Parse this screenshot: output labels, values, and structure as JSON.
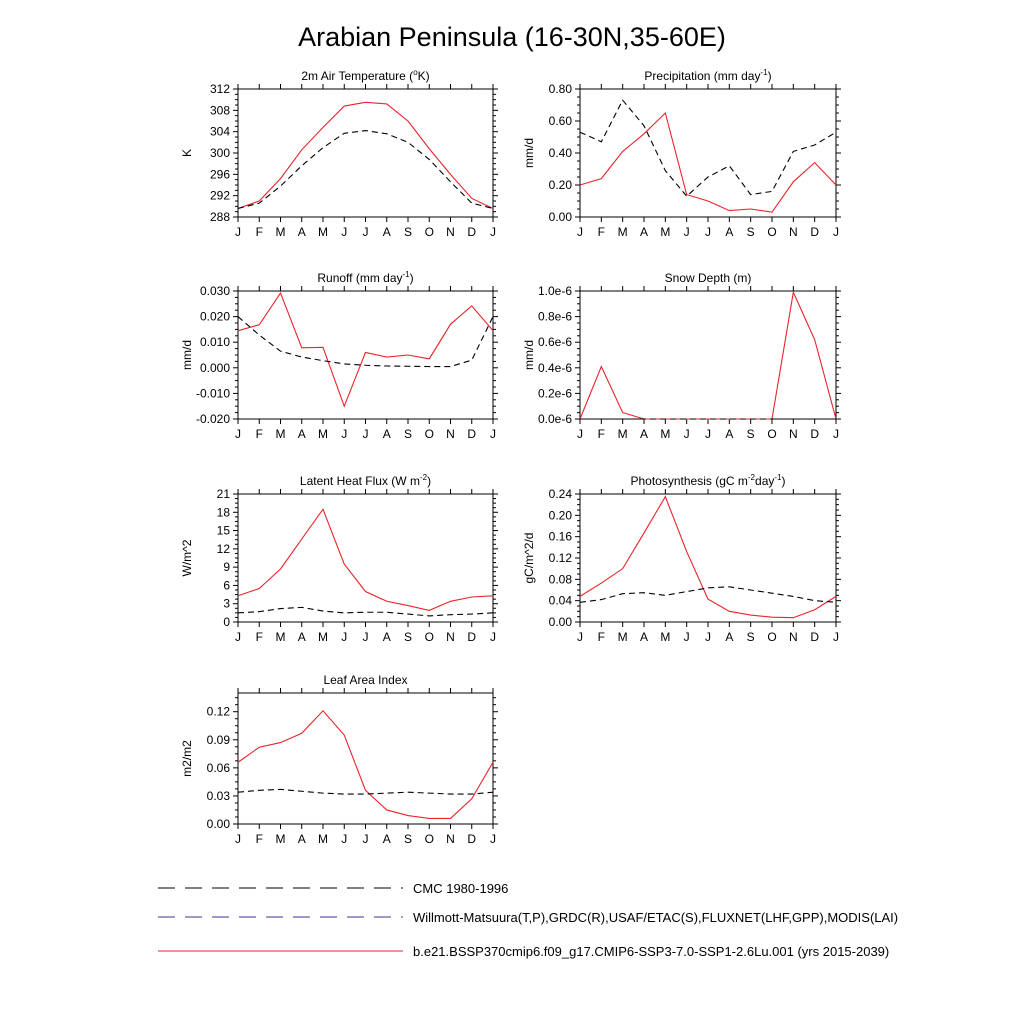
{
  "title": "Arabian Peninsula (16-30N,35-60E)",
  "months": [
    "J",
    "F",
    "M",
    "A",
    "M",
    "J",
    "J",
    "A",
    "S",
    "O",
    "N",
    "D",
    "J"
  ],
  "colors": {
    "model": "#e8242a",
    "obs": "#000000",
    "obs_alt": "#3a3a8c"
  },
  "legend": [
    {
      "label": "CMC 1980-1996",
      "style": "dash",
      "color": "#000000"
    },
    {
      "label": "Willmott-Matsuura(T,P),GRDC(R),USAF/ETAC(S),FLUXNET(LHF,GPP),MODIS(LAI)",
      "style": "dash",
      "color": "#3a3a8c"
    },
    {
      "label": "b.e21.BSSP370cmip6.f09_g17.CMIP6-SSP3-7.0-SSP1-2.6Lu.001 (yrs 2015-2039)",
      "style": "solid",
      "color": "#e8242a"
    }
  ],
  "chart_data": [
    {
      "type": "line",
      "title": "2m Air Temperature (°K)",
      "title_parts": [
        [
          "2m Air Temperature (",
          false
        ],
        [
          "o",
          true
        ],
        [
          "K)",
          false
        ]
      ],
      "ylabel": "K",
      "ylim": [
        288,
        312
      ],
      "yticks": [
        288,
        292,
        296,
        300,
        304,
        308,
        312
      ],
      "ytick_labels": [
        "288",
        "292",
        "296",
        "300",
        "304",
        "308",
        "312"
      ],
      "series": [
        {
          "style": "solid",
          "values": [
            289.6,
            291.0,
            295.2,
            300.6,
            304.8,
            308.8,
            309.5,
            309.2,
            306.0,
            300.8,
            296.0,
            291.5,
            289.6
          ]
        },
        {
          "style": "dash",
          "values": [
            289.6,
            290.6,
            293.8,
            297.6,
            301.0,
            303.7,
            304.2,
            303.6,
            302.0,
            298.8,
            294.6,
            290.6,
            289.6
          ]
        }
      ]
    },
    {
      "type": "line",
      "title": "Precipitation (mm day-1)",
      "title_parts": [
        [
          "Precipitation (mm day",
          false
        ],
        [
          "-1",
          true
        ],
        [
          ")",
          false
        ]
      ],
      "ylabel": "mm/d",
      "ylim": [
        0,
        0.8
      ],
      "yticks": [
        0,
        0.2,
        0.4,
        0.6,
        0.8
      ],
      "ytick_labels": [
        "0.00",
        "0.20",
        "0.40",
        "0.60",
        "0.80"
      ],
      "series": [
        {
          "style": "solid",
          "values": [
            0.2,
            0.24,
            0.41,
            0.52,
            0.65,
            0.14,
            0.1,
            0.04,
            0.05,
            0.03,
            0.22,
            0.34,
            0.2
          ]
        },
        {
          "style": "dash",
          "values": [
            0.53,
            0.47,
            0.73,
            0.57,
            0.29,
            0.13,
            0.25,
            0.32,
            0.14,
            0.16,
            0.41,
            0.45,
            0.53
          ]
        }
      ]
    },
    {
      "type": "line",
      "title": "Runoff (mm day-1)",
      "title_parts": [
        [
          "Runoff (mm day",
          false
        ],
        [
          "-1",
          true
        ],
        [
          ")",
          false
        ]
      ],
      "ylabel": "mm/d",
      "ylim": [
        -0.02,
        0.03
      ],
      "yticks": [
        -0.02,
        -0.01,
        0,
        0.01,
        0.02,
        0.03
      ],
      "ytick_labels": [
        "-0.020",
        "-0.010",
        "0.000",
        "0.010",
        "0.020",
        "0.030"
      ],
      "series": [
        {
          "style": "solid",
          "values": [
            0.0145,
            0.0168,
            0.0292,
            0.0078,
            0.008,
            -0.015,
            0.006,
            0.0042,
            0.005,
            0.0035,
            0.017,
            0.0242,
            0.0145
          ]
        },
        {
          "style": "dash",
          "values": [
            0.02,
            0.0128,
            0.0065,
            0.0042,
            0.0028,
            0.0015,
            0.001,
            0.0007,
            0.0006,
            0.0005,
            0.0005,
            0.003,
            0.02
          ]
        }
      ]
    },
    {
      "type": "line",
      "title": "Snow Depth (m)",
      "title_parts": [
        [
          "Snow Depth (m)",
          false
        ]
      ],
      "ylabel": "mm/d",
      "ylim": [
        0,
        1.0
      ],
      "yticks": [
        0,
        0.2,
        0.4,
        0.6,
        0.8,
        1.0
      ],
      "ytick_labels": [
        "0.0e-6",
        "0.2e-6",
        "0.4e-6",
        "0.6e-6",
        "0.8e-6",
        "1.0e-6"
      ],
      "series": [
        {
          "style": "solid",
          "values": [
            0.0,
            0.41,
            0.05,
            0.0,
            0.0,
            0.0,
            0.0,
            0.0,
            0.0,
            0.0,
            0.99,
            0.62,
            0.0
          ]
        },
        {
          "style": "dash",
          "values": [
            0.0,
            0.0,
            0.0,
            0.0,
            0.0,
            0.0,
            0.0,
            0.0,
            0.0,
            0.0,
            0.0,
            0.0,
            0.0
          ]
        }
      ]
    },
    {
      "type": "line",
      "title": "Latent Heat Flux (W m-2)",
      "title_parts": [
        [
          "Latent Heat Flux (W m",
          false
        ],
        [
          "-2",
          true
        ],
        [
          ")",
          false
        ]
      ],
      "ylabel": "W/m^2",
      "ylim": [
        0,
        21
      ],
      "yticks": [
        0,
        3,
        6,
        9,
        12,
        15,
        18,
        21
      ],
      "ytick_labels": [
        "0",
        "3",
        "6",
        "9",
        "12",
        "15",
        "18",
        "21"
      ],
      "series": [
        {
          "style": "solid",
          "values": [
            4.3,
            5.5,
            8.7,
            13.6,
            18.5,
            9.5,
            5.0,
            3.4,
            2.7,
            1.9,
            3.4,
            4.1,
            4.3
          ]
        },
        {
          "style": "dash",
          "values": [
            1.5,
            1.7,
            2.2,
            2.4,
            1.8,
            1.5,
            1.6,
            1.6,
            1.3,
            1.0,
            1.2,
            1.3,
            1.5
          ]
        }
      ]
    },
    {
      "type": "line",
      "title": "Photosynthesis (gC m-2day-1)",
      "title_parts": [
        [
          "Photosynthesis (gC m",
          false
        ],
        [
          "-2",
          true
        ],
        [
          "day",
          false
        ],
        [
          "-1",
          true
        ],
        [
          ")",
          false
        ]
      ],
      "ylabel": "gC/m^2/d",
      "ylim": [
        0,
        0.24
      ],
      "yticks": [
        0,
        0.04,
        0.08,
        0.12,
        0.16,
        0.2,
        0.24
      ],
      "ytick_labels": [
        "0.00",
        "0.04",
        "0.08",
        "0.12",
        "0.16",
        "0.20",
        "0.24"
      ],
      "series": [
        {
          "style": "solid",
          "values": [
            0.048,
            0.073,
            0.1,
            0.167,
            0.235,
            0.132,
            0.043,
            0.02,
            0.013,
            0.009,
            0.008,
            0.023,
            0.048
          ]
        },
        {
          "style": "dash",
          "values": [
            0.037,
            0.042,
            0.053,
            0.055,
            0.05,
            0.057,
            0.064,
            0.066,
            0.06,
            0.054,
            0.048,
            0.04,
            0.037
          ]
        }
      ]
    },
    {
      "type": "line",
      "title": "Leaf Area Index",
      "title_parts": [
        [
          "Leaf Area Index",
          false
        ]
      ],
      "ylabel": "m2/m2",
      "ylim": [
        0,
        0.14
      ],
      "yticks": [
        0,
        0.03,
        0.06,
        0.09,
        0.12
      ],
      "ytick_labels": [
        "0.00",
        "0.03",
        "0.06",
        "0.09",
        "0.12"
      ],
      "series": [
        {
          "style": "solid",
          "values": [
            0.066,
            0.082,
            0.087,
            0.097,
            0.121,
            0.095,
            0.036,
            0.015,
            0.009,
            0.006,
            0.006,
            0.027,
            0.066
          ]
        },
        {
          "style": "dash",
          "values": [
            0.034,
            0.036,
            0.037,
            0.035,
            0.033,
            0.032,
            0.032,
            0.033,
            0.034,
            0.033,
            0.032,
            0.032,
            0.034
          ]
        }
      ]
    }
  ]
}
